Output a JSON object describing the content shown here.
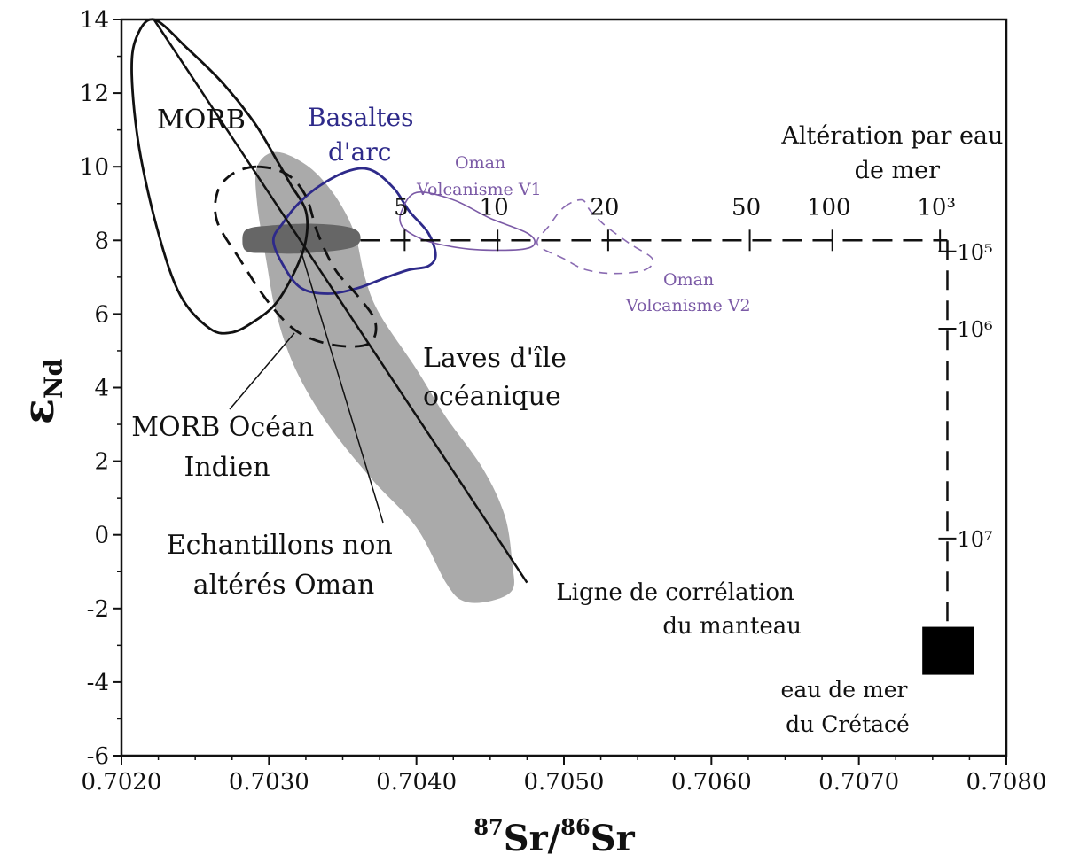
{
  "chart_data": {
    "type": "scatter",
    "xlabel": "87Sr/86Sr",
    "xlabel_parts": {
      "sup1": "87",
      "base1": "Sr/",
      "sup2": "86",
      "base2": "Sr"
    },
    "ylabel": "εNd",
    "ylabel_parts": {
      "main": "ε",
      "sub": "Nd"
    },
    "xlim": [
      0.702,
      0.708
    ],
    "ylim": [
      -6,
      14
    ],
    "xticks": [
      0.702,
      0.703,
      0.704,
      0.705,
      0.706,
      0.707,
      0.708
    ],
    "xtick_labels": [
      "0.7020",
      "0.7030",
      "0.7040",
      "0.7050",
      "0.7060",
      "0.7070",
      "0.7080"
    ],
    "yticks": [
      -6,
      -4,
      -2,
      0,
      2,
      4,
      6,
      8,
      10,
      12,
      14
    ],
    "ytick_labels": [
      "-6",
      "-4",
      "-2",
      "0",
      "2",
      "4",
      "6",
      "8",
      "10",
      "12",
      "14"
    ],
    "grid": false,
    "regions": [
      {
        "name": "Laves d'île océanique",
        "label_lines": [
          "Laves d'île",
          "océanique"
        ],
        "style": "filled-lightgray",
        "color": "#aaaaaa",
        "points": [
          [
            0.70305,
            10.4
          ],
          [
            0.70327,
            10.0
          ],
          [
            0.70345,
            9.2
          ],
          [
            0.70358,
            8.2
          ],
          [
            0.70365,
            7.0
          ],
          [
            0.70375,
            6.0
          ],
          [
            0.704,
            4.5
          ],
          [
            0.7042,
            3.2
          ],
          [
            0.70445,
            1.8
          ],
          [
            0.7046,
            0.5
          ],
          [
            0.70465,
            -0.8
          ],
          [
            0.70465,
            -1.5
          ],
          [
            0.7045,
            -1.8
          ],
          [
            0.70432,
            -1.8
          ],
          [
            0.7042,
            -1.3
          ],
          [
            0.704,
            0.2
          ],
          [
            0.7037,
            1.5
          ],
          [
            0.7034,
            3.0
          ],
          [
            0.70318,
            4.5
          ],
          [
            0.70305,
            6.0
          ],
          [
            0.70298,
            7.5
          ],
          [
            0.70292,
            9.0
          ],
          [
            0.70292,
            10.0
          ]
        ]
      },
      {
        "name": "Echantillons non altérés Oman",
        "label_lines": [
          "Echantillons non",
          "altérés Oman"
        ],
        "style": "filled-darkgray",
        "color": "#666666",
        "points": [
          [
            0.70285,
            8.3
          ],
          [
            0.703,
            8.4
          ],
          [
            0.7033,
            8.45
          ],
          [
            0.70355,
            8.35
          ],
          [
            0.70362,
            8.1
          ],
          [
            0.70356,
            7.8
          ],
          [
            0.70325,
            7.65
          ],
          [
            0.703,
            7.65
          ],
          [
            0.70285,
            7.7
          ],
          [
            0.70282,
            8.0
          ]
        ]
      },
      {
        "name": "MORB",
        "label_lines": [
          "MORB"
        ],
        "style": "solid-outline",
        "color": "#111111",
        "points": [
          [
            0.70222,
            14.0
          ],
          [
            0.70245,
            13.2
          ],
          [
            0.70268,
            12.3
          ],
          [
            0.7029,
            11.2
          ],
          [
            0.70305,
            10.2
          ],
          [
            0.70315,
            9.5
          ],
          [
            0.70325,
            8.8
          ],
          [
            0.70325,
            8.0
          ],
          [
            0.70318,
            7.2
          ],
          [
            0.70305,
            6.3
          ],
          [
            0.7029,
            5.8
          ],
          [
            0.70275,
            5.5
          ],
          [
            0.7026,
            5.6
          ],
          [
            0.7024,
            6.5
          ],
          [
            0.70225,
            8.2
          ],
          [
            0.70212,
            10.5
          ],
          [
            0.70207,
            12.5
          ],
          [
            0.7021,
            13.5
          ]
        ]
      },
      {
        "name": "MORB Océan Indien",
        "label_lines": [
          "MORB Océan",
          "Indien"
        ],
        "style": "dashed-outline",
        "color": "#111111",
        "points": [
          [
            0.70292,
            10.0
          ],
          [
            0.70312,
            9.8
          ],
          [
            0.70325,
            9.2
          ],
          [
            0.70333,
            8.2
          ],
          [
            0.70345,
            7.2
          ],
          [
            0.7036,
            6.5
          ],
          [
            0.70372,
            5.8
          ],
          [
            0.70368,
            5.2
          ],
          [
            0.70345,
            5.15
          ],
          [
            0.7032,
            5.5
          ],
          [
            0.703,
            6.3
          ],
          [
            0.7028,
            7.5
          ],
          [
            0.70265,
            8.5
          ],
          [
            0.70265,
            9.3
          ],
          [
            0.70275,
            9.8
          ]
        ]
      },
      {
        "name": "Basaltes d'arc",
        "label_lines": [
          "Basaltes",
          "d'arc"
        ],
        "style": "solid-outline",
        "color": "#2e2a8a",
        "points": [
          [
            0.7031,
            8.5
          ],
          [
            0.7032,
            9.0
          ],
          [
            0.70335,
            9.5
          ],
          [
            0.70355,
            9.9
          ],
          [
            0.7037,
            9.9
          ],
          [
            0.70385,
            9.4
          ],
          [
            0.70395,
            8.8
          ],
          [
            0.70408,
            8.2
          ],
          [
            0.70413,
            7.6
          ],
          [
            0.70408,
            7.3
          ],
          [
            0.70395,
            7.2
          ],
          [
            0.7038,
            7.0
          ],
          [
            0.7036,
            6.7
          ],
          [
            0.7034,
            6.55
          ],
          [
            0.70322,
            6.7
          ],
          [
            0.7031,
            7.3
          ],
          [
            0.70303,
            8.0
          ]
        ]
      },
      {
        "name": "Oman Volcanisme V1",
        "label_lines": [
          "Oman",
          "Volcanisme V1"
        ],
        "style": "solid-outline-thin",
        "color": "#7b5aa6",
        "points": [
          [
            0.7039,
            8.8
          ],
          [
            0.704,
            9.3
          ],
          [
            0.70425,
            9.1
          ],
          [
            0.7045,
            8.6
          ],
          [
            0.70475,
            8.2
          ],
          [
            0.7048,
            7.9
          ],
          [
            0.7047,
            7.75
          ],
          [
            0.7044,
            7.75
          ],
          [
            0.70415,
            7.9
          ],
          [
            0.704,
            8.1
          ],
          [
            0.7039,
            8.4
          ]
        ]
      },
      {
        "name": "Oman Volcanisme V2",
        "label_lines": [
          "Oman",
          "Volcanisme V2"
        ],
        "style": "dashed-outline-thin",
        "color": "#8a6bb2",
        "points": [
          [
            0.705,
            8.9
          ],
          [
            0.70512,
            9.1
          ],
          [
            0.70518,
            8.8
          ],
          [
            0.70528,
            8.4
          ],
          [
            0.70545,
            7.9
          ],
          [
            0.7056,
            7.5
          ],
          [
            0.70555,
            7.2
          ],
          [
            0.70535,
            7.1
          ],
          [
            0.70515,
            7.2
          ],
          [
            0.705,
            7.5
          ],
          [
            0.70482,
            7.9
          ],
          [
            0.7049,
            8.4
          ]
        ]
      }
    ],
    "mantle_correlation_line": {
      "name": "Ligne de corrélation du manteau",
      "label_lines": [
        "Ligne de corrélation",
        "du manteau"
      ],
      "points": [
        [
          0.70222,
          14.0
        ],
        [
          0.70475,
          -1.3
        ]
      ]
    },
    "seawater_alteration_path": {
      "name": "Altération par eau de mer",
      "label_lines": [
        "Altération par eau",
        "de mer"
      ],
      "horizontal": {
        "y": 8,
        "x_start": 0.70362,
        "x_end": 0.7076,
        "ticks": [
          {
            "label": "5",
            "x": 0.70392
          },
          {
            "label": "10",
            "x": 0.70455
          },
          {
            "label": "20",
            "x": 0.7053
          },
          {
            "label": "50",
            "x": 0.70626
          },
          {
            "label": "100",
            "x": 0.70682
          },
          {
            "label": "10³",
            "x": 0.70755
          }
        ]
      },
      "vertical": {
        "x": 0.7076,
        "y_start": 8,
        "y_end": -2.6,
        "ticks": [
          {
            "label": "10⁵",
            "y": 7.7
          },
          {
            "label": "10⁶",
            "y": 5.6
          },
          {
            "label": "10⁷",
            "y": -0.1
          }
        ]
      }
    },
    "seawater_box": {
      "name": "eau de mer du Crétacé",
      "label_lines": [
        "eau de mer",
        "du Crétacé"
      ],
      "x_range": [
        0.70743,
        0.70778
      ],
      "y_range": [
        -3.8,
        -2.5
      ],
      "color": "#000000"
    }
  }
}
